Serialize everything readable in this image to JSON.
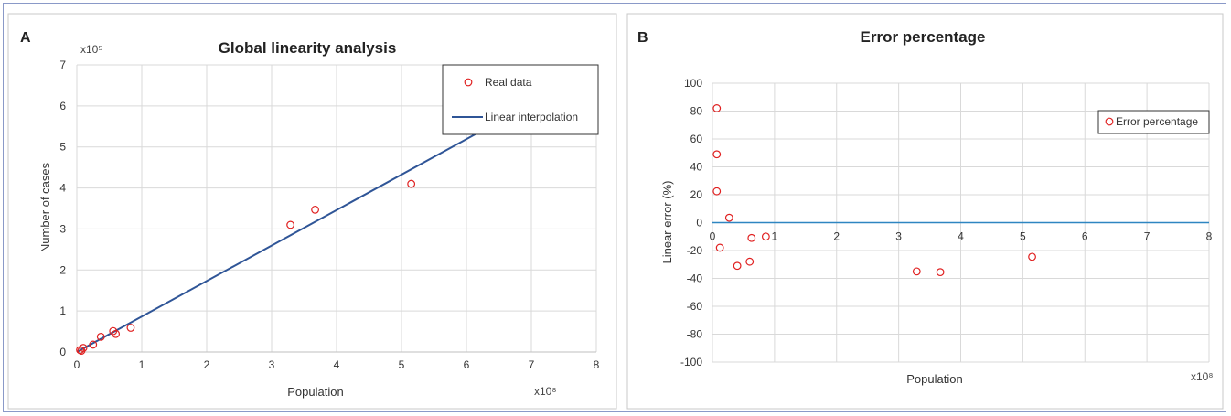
{
  "colors": {
    "marker": "#e02020",
    "lineA": "#2f5597",
    "lineB": "#2e86c1",
    "grid": "#d9d9d9",
    "border": "#c8c8c8"
  },
  "chart_data": [
    {
      "type": "scatter",
      "panel_label": "A",
      "title": "Global linearity analysis",
      "xlabel": "Population",
      "ylabel": "Number of cases",
      "x_multiplier": "x10⁸",
      "y_multiplier": "x10⁵",
      "xlim": [
        0,
        8
      ],
      "ylim": [
        0,
        7
      ],
      "grid": true,
      "legend_position": "top-right",
      "x_ticks": [
        "0",
        "1",
        "2",
        "3",
        "4",
        "5",
        "6",
        "7",
        "8"
      ],
      "y_ticks": [
        "0",
        "1",
        "2",
        "3",
        "4",
        "5",
        "6",
        "7"
      ],
      "series": [
        {
          "name": "Real data",
          "style": "marker",
          "x": [
            0.05,
            0.07,
            0.1,
            0.25,
            0.37,
            0.56,
            0.6,
            0.83,
            3.29,
            3.67,
            5.15
          ],
          "y": [
            0.05,
            0.03,
            0.1,
            0.18,
            0.37,
            0.51,
            0.44,
            0.59,
            3.1,
            3.47,
            4.1
          ]
        },
        {
          "name": "Linear interpolation",
          "style": "line",
          "x": [
            0.0,
            6.3
          ],
          "y": [
            0.0,
            5.45
          ]
        }
      ]
    },
    {
      "type": "scatter",
      "panel_label": "B",
      "title": "Error percentage",
      "xlabel": "Population",
      "ylabel": "Linear error (%)",
      "x_multiplier": "x10⁸",
      "xlim": [
        0,
        8
      ],
      "ylim": [
        -100,
        100
      ],
      "grid": true,
      "legend_position": "top-right",
      "x_ticks": [
        "0",
        "1",
        "2",
        "3",
        "4",
        "5",
        "6",
        "7",
        "8"
      ],
      "y_ticks": [
        "100",
        "80",
        "60",
        "40",
        "20",
        "0",
        "-20",
        "-40",
        "-60",
        "-80",
        "-100"
      ],
      "series": [
        {
          "name": "Error percentage",
          "style": "marker",
          "x": [
            0.07,
            0.07,
            0.07,
            0.12,
            0.27,
            0.4,
            0.6,
            0.63,
            0.86,
            3.29,
            3.67,
            5.15
          ],
          "y": [
            82,
            49,
            22.5,
            -18,
            3.5,
            -31,
            -28,
            -11,
            -10,
            -35,
            -35.5,
            -24.5
          ]
        }
      ]
    }
  ]
}
